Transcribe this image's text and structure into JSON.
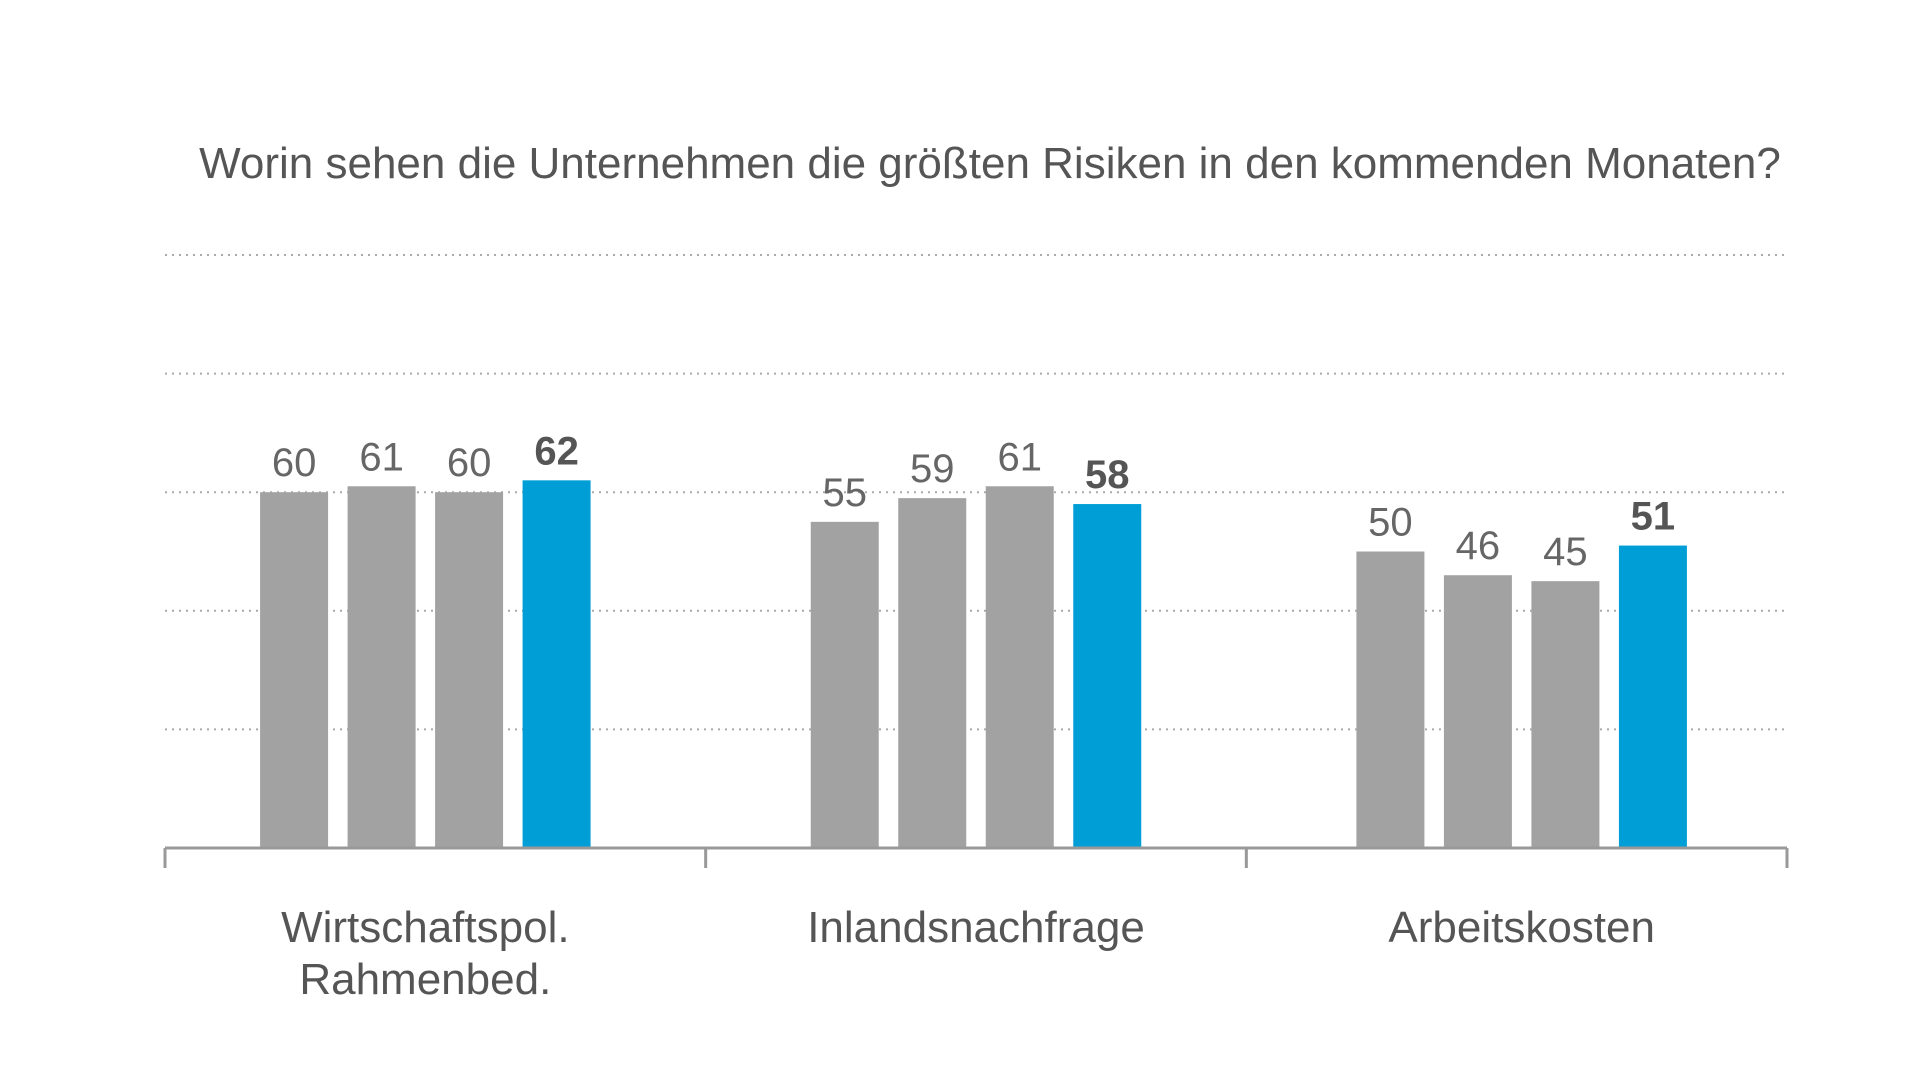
{
  "chart_data": {
    "type": "bar",
    "title": "Worin sehen die Unternehmen die größten Risiken in den kommenden Monaten?",
    "xlabel": "",
    "ylabel": "",
    "ylim": [
      0,
      100
    ],
    "grid": true,
    "categories": [
      [
        "Wirtschaftspol.",
        "Rahmenbed."
      ],
      [
        "Inlandsnachfrage"
      ],
      [
        "Arbeitskosten"
      ]
    ],
    "series": [
      {
        "values": [
          60,
          55,
          50
        ],
        "color": "#a2a2a2"
      },
      {
        "values": [
          61,
          59,
          46
        ],
        "color": "#a2a2a2"
      },
      {
        "values": [
          60,
          61,
          45
        ],
        "color": "#a2a2a2"
      },
      {
        "values": [
          62,
          58,
          51
        ],
        "color": "#009ed6",
        "highlight": true
      }
    ]
  }
}
